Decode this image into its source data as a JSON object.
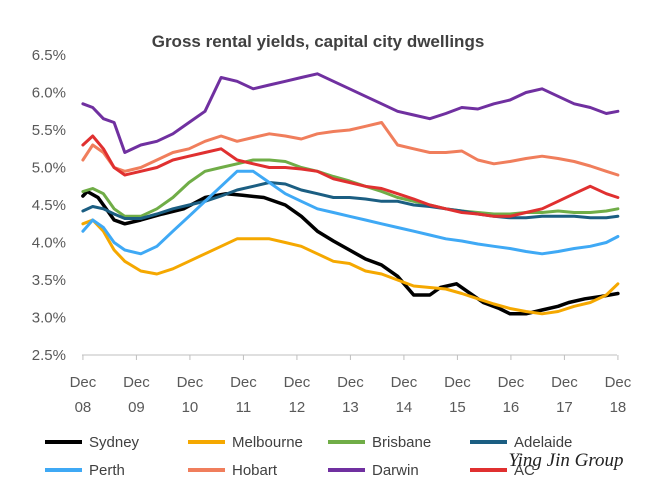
{
  "chart_data": {
    "type": "line",
    "title": "Gross rental yields, capital city dwellings",
    "xlabel": "",
    "ylabel": "",
    "ylim": [
      2.5,
      6.5
    ],
    "yticks": [
      "2.5%",
      "3.0%",
      "3.5%",
      "4.0%",
      "4.5%",
      "5.0%",
      "5.5%",
      "6.0%",
      "6.5%"
    ],
    "ytick_values": [
      2.5,
      3.0,
      3.5,
      4.0,
      4.5,
      5.0,
      5.5,
      6.0,
      6.5
    ],
    "xlim": [
      2008.9,
      2018.9
    ],
    "xticks": [
      {
        "month": "Dec",
        "year": "08",
        "t": 2008.917
      },
      {
        "month": "Dec",
        "year": "09",
        "t": 2009.917
      },
      {
        "month": "Dec",
        "year": "10",
        "t": 2010.917
      },
      {
        "month": "Dec",
        "year": "11",
        "t": 2011.917
      },
      {
        "month": "Dec",
        "year": "12",
        "t": 2012.917
      },
      {
        "month": "Dec",
        "year": "13",
        "t": 2013.917
      },
      {
        "month": "Dec",
        "year": "14",
        "t": 2014.917
      },
      {
        "month": "Dec",
        "year": "15",
        "t": 2015.917
      },
      {
        "month": "Dec",
        "year": "16",
        "t": 2016.917
      },
      {
        "month": "Dec",
        "year": "17",
        "t": 2017.917
      },
      {
        "month": "Dec",
        "year": "18",
        "t": 2018.917
      }
    ],
    "legend_position": "bottom",
    "series": [
      {
        "name": "Sydney",
        "color": "#000000",
        "x": [
          2008.917,
          2009.0,
          2009.2,
          2009.4,
          2009.5,
          2009.7,
          2010.0,
          2010.4,
          2010.8,
          2011.2,
          2011.6,
          2011.9,
          2012.3,
          2012.7,
          2013.0,
          2013.3,
          2013.6,
          2013.9,
          2014.2,
          2014.5,
          2014.8,
          2015.1,
          2015.4,
          2015.6,
          2015.9,
          2016.1,
          2016.4,
          2016.7,
          2016.9,
          2017.2,
          2017.5,
          2017.8,
          2018.0,
          2018.3,
          2018.6,
          2018.917
        ],
        "values": [
          4.62,
          4.68,
          4.6,
          4.4,
          4.3,
          4.25,
          4.3,
          4.38,
          4.45,
          4.6,
          4.65,
          4.63,
          4.6,
          4.5,
          4.35,
          4.15,
          4.02,
          3.9,
          3.78,
          3.7,
          3.55,
          3.3,
          3.3,
          3.4,
          3.45,
          3.35,
          3.2,
          3.12,
          3.05,
          3.05,
          3.1,
          3.15,
          3.2,
          3.25,
          3.28,
          3.32
        ]
      },
      {
        "name": "Melbourne",
        "color": "#F5A800",
        "x": [
          2008.917,
          2009.1,
          2009.3,
          2009.5,
          2009.7,
          2010.0,
          2010.3,
          2010.6,
          2010.9,
          2011.2,
          2011.5,
          2011.8,
          2012.1,
          2012.4,
          2012.7,
          2013.0,
          2013.3,
          2013.6,
          2013.9,
          2014.2,
          2014.5,
          2014.8,
          2015.1,
          2015.4,
          2015.7,
          2016.0,
          2016.3,
          2016.6,
          2016.9,
          2017.2,
          2017.5,
          2017.8,
          2018.1,
          2018.4,
          2018.7,
          2018.917
        ],
        "values": [
          4.25,
          4.3,
          4.15,
          3.9,
          3.75,
          3.62,
          3.58,
          3.65,
          3.75,
          3.85,
          3.95,
          4.05,
          4.05,
          4.05,
          4.0,
          3.95,
          3.85,
          3.75,
          3.72,
          3.62,
          3.58,
          3.5,
          3.42,
          3.4,
          3.38,
          3.32,
          3.25,
          3.18,
          3.12,
          3.08,
          3.05,
          3.08,
          3.15,
          3.2,
          3.3,
          3.45
        ]
      },
      {
        "name": "Brisbane",
        "color": "#70AD47",
        "x": [
          2008.917,
          2009.1,
          2009.3,
          2009.5,
          2009.7,
          2010.0,
          2010.3,
          2010.6,
          2010.9,
          2011.2,
          2011.5,
          2011.8,
          2012.1,
          2012.4,
          2012.7,
          2013.0,
          2013.3,
          2013.6,
          2013.9,
          2014.2,
          2014.5,
          2014.8,
          2015.1,
          2015.4,
          2015.7,
          2016.0,
          2016.3,
          2016.6,
          2016.9,
          2017.2,
          2017.5,
          2017.8,
          2018.1,
          2018.4,
          2018.7,
          2018.917
        ],
        "values": [
          4.68,
          4.72,
          4.65,
          4.45,
          4.35,
          4.35,
          4.45,
          4.6,
          4.8,
          4.95,
          5.0,
          5.05,
          5.1,
          5.1,
          5.08,
          5.0,
          4.95,
          4.88,
          4.82,
          4.75,
          4.68,
          4.6,
          4.55,
          4.5,
          4.45,
          4.42,
          4.4,
          4.38,
          4.38,
          4.4,
          4.4,
          4.42,
          4.4,
          4.4,
          4.42,
          4.45
        ]
      },
      {
        "name": "Adelaide",
        "color": "#1B5E82",
        "x": [
          2008.917,
          2009.1,
          2009.3,
          2009.5,
          2009.7,
          2010.0,
          2010.3,
          2010.6,
          2010.9,
          2011.2,
          2011.5,
          2011.8,
          2012.1,
          2012.4,
          2012.7,
          2013.0,
          2013.3,
          2013.6,
          2013.9,
          2014.2,
          2014.5,
          2014.8,
          2015.1,
          2015.4,
          2015.7,
          2016.0,
          2016.3,
          2016.6,
          2016.9,
          2017.2,
          2017.5,
          2017.8,
          2018.1,
          2018.4,
          2018.7,
          2018.917
        ],
        "values": [
          4.42,
          4.48,
          4.45,
          4.38,
          4.32,
          4.32,
          4.38,
          4.45,
          4.5,
          4.55,
          4.62,
          4.7,
          4.75,
          4.8,
          4.78,
          4.7,
          4.65,
          4.6,
          4.6,
          4.58,
          4.55,
          4.55,
          4.5,
          4.48,
          4.45,
          4.42,
          4.38,
          4.35,
          4.33,
          4.33,
          4.35,
          4.35,
          4.35,
          4.33,
          4.33,
          4.35
        ]
      },
      {
        "name": "Perth",
        "color": "#3FA9F5",
        "x": [
          2008.917,
          2009.1,
          2009.3,
          2009.5,
          2009.7,
          2010.0,
          2010.3,
          2010.6,
          2010.9,
          2011.2,
          2011.5,
          2011.8,
          2012.1,
          2012.4,
          2012.7,
          2013.0,
          2013.3,
          2013.6,
          2013.9,
          2014.2,
          2014.5,
          2014.8,
          2015.1,
          2015.4,
          2015.7,
          2016.0,
          2016.3,
          2016.6,
          2016.9,
          2017.2,
          2017.5,
          2017.8,
          2018.1,
          2018.4,
          2018.7,
          2018.917
        ],
        "values": [
          4.15,
          4.3,
          4.2,
          4.0,
          3.9,
          3.85,
          3.95,
          4.15,
          4.35,
          4.55,
          4.75,
          4.95,
          4.95,
          4.8,
          4.65,
          4.55,
          4.45,
          4.4,
          4.35,
          4.3,
          4.25,
          4.2,
          4.15,
          4.1,
          4.05,
          4.02,
          3.98,
          3.95,
          3.92,
          3.88,
          3.85,
          3.88,
          3.92,
          3.95,
          4.0,
          4.08
        ]
      },
      {
        "name": "Hobart",
        "color": "#F07E5C",
        "x": [
          2008.917,
          2009.1,
          2009.3,
          2009.5,
          2009.7,
          2010.0,
          2010.3,
          2010.6,
          2010.9,
          2011.2,
          2011.5,
          2011.8,
          2012.1,
          2012.4,
          2012.7,
          2013.0,
          2013.3,
          2013.6,
          2013.9,
          2014.2,
          2014.5,
          2014.8,
          2015.1,
          2015.4,
          2015.7,
          2016.0,
          2016.3,
          2016.6,
          2016.9,
          2017.2,
          2017.5,
          2017.8,
          2018.1,
          2018.4,
          2018.7,
          2018.917
        ],
        "values": [
          5.1,
          5.3,
          5.2,
          5.0,
          4.95,
          5.0,
          5.1,
          5.2,
          5.25,
          5.35,
          5.42,
          5.35,
          5.4,
          5.45,
          5.42,
          5.38,
          5.45,
          5.48,
          5.5,
          5.55,
          5.6,
          5.3,
          5.25,
          5.2,
          5.2,
          5.22,
          5.1,
          5.05,
          5.08,
          5.12,
          5.15,
          5.12,
          5.08,
          5.02,
          4.95,
          4.9
        ]
      },
      {
        "name": "Darwin",
        "color": "#7030A0",
        "x": [
          2008.917,
          2009.1,
          2009.3,
          2009.5,
          2009.7,
          2010.0,
          2010.3,
          2010.6,
          2010.9,
          2011.2,
          2011.5,
          2011.8,
          2012.1,
          2012.4,
          2012.7,
          2013.0,
          2013.3,
          2013.6,
          2013.9,
          2014.2,
          2014.5,
          2014.8,
          2015.1,
          2015.4,
          2015.7,
          2016.0,
          2016.3,
          2016.6,
          2016.9,
          2017.2,
          2017.5,
          2017.8,
          2018.1,
          2018.4,
          2018.7,
          2018.917
        ],
        "values": [
          5.85,
          5.8,
          5.65,
          5.6,
          5.2,
          5.3,
          5.35,
          5.45,
          5.6,
          5.75,
          6.2,
          6.15,
          6.05,
          6.1,
          6.15,
          6.2,
          6.25,
          6.15,
          6.05,
          5.95,
          5.85,
          5.75,
          5.7,
          5.65,
          5.72,
          5.8,
          5.78,
          5.85,
          5.9,
          6.0,
          6.05,
          5.95,
          5.85,
          5.8,
          5.72,
          5.75
        ]
      },
      {
        "name": "ACT",
        "color": "#E03030",
        "x": [
          2008.917,
          2009.1,
          2009.3,
          2009.5,
          2009.7,
          2010.0,
          2010.3,
          2010.6,
          2010.9,
          2011.2,
          2011.5,
          2011.8,
          2012.1,
          2012.4,
          2012.7,
          2013.0,
          2013.3,
          2013.6,
          2013.9,
          2014.2,
          2014.5,
          2014.8,
          2015.1,
          2015.4,
          2015.7,
          2016.0,
          2016.3,
          2016.6,
          2016.9,
          2017.2,
          2017.5,
          2017.8,
          2018.1,
          2018.4,
          2018.7,
          2018.917
        ],
        "values": [
          5.3,
          5.42,
          5.25,
          5.0,
          4.9,
          4.95,
          5.0,
          5.1,
          5.15,
          5.2,
          5.25,
          5.1,
          5.05,
          5.0,
          5.0,
          4.98,
          4.95,
          4.85,
          4.8,
          4.75,
          4.72,
          4.65,
          4.58,
          4.5,
          4.45,
          4.4,
          4.38,
          4.35,
          4.35,
          4.4,
          4.45,
          4.55,
          4.65,
          4.75,
          4.65,
          4.6
        ]
      }
    ],
    "legend_label_partial": "AC"
  },
  "watermark": "Ying Jin Group"
}
